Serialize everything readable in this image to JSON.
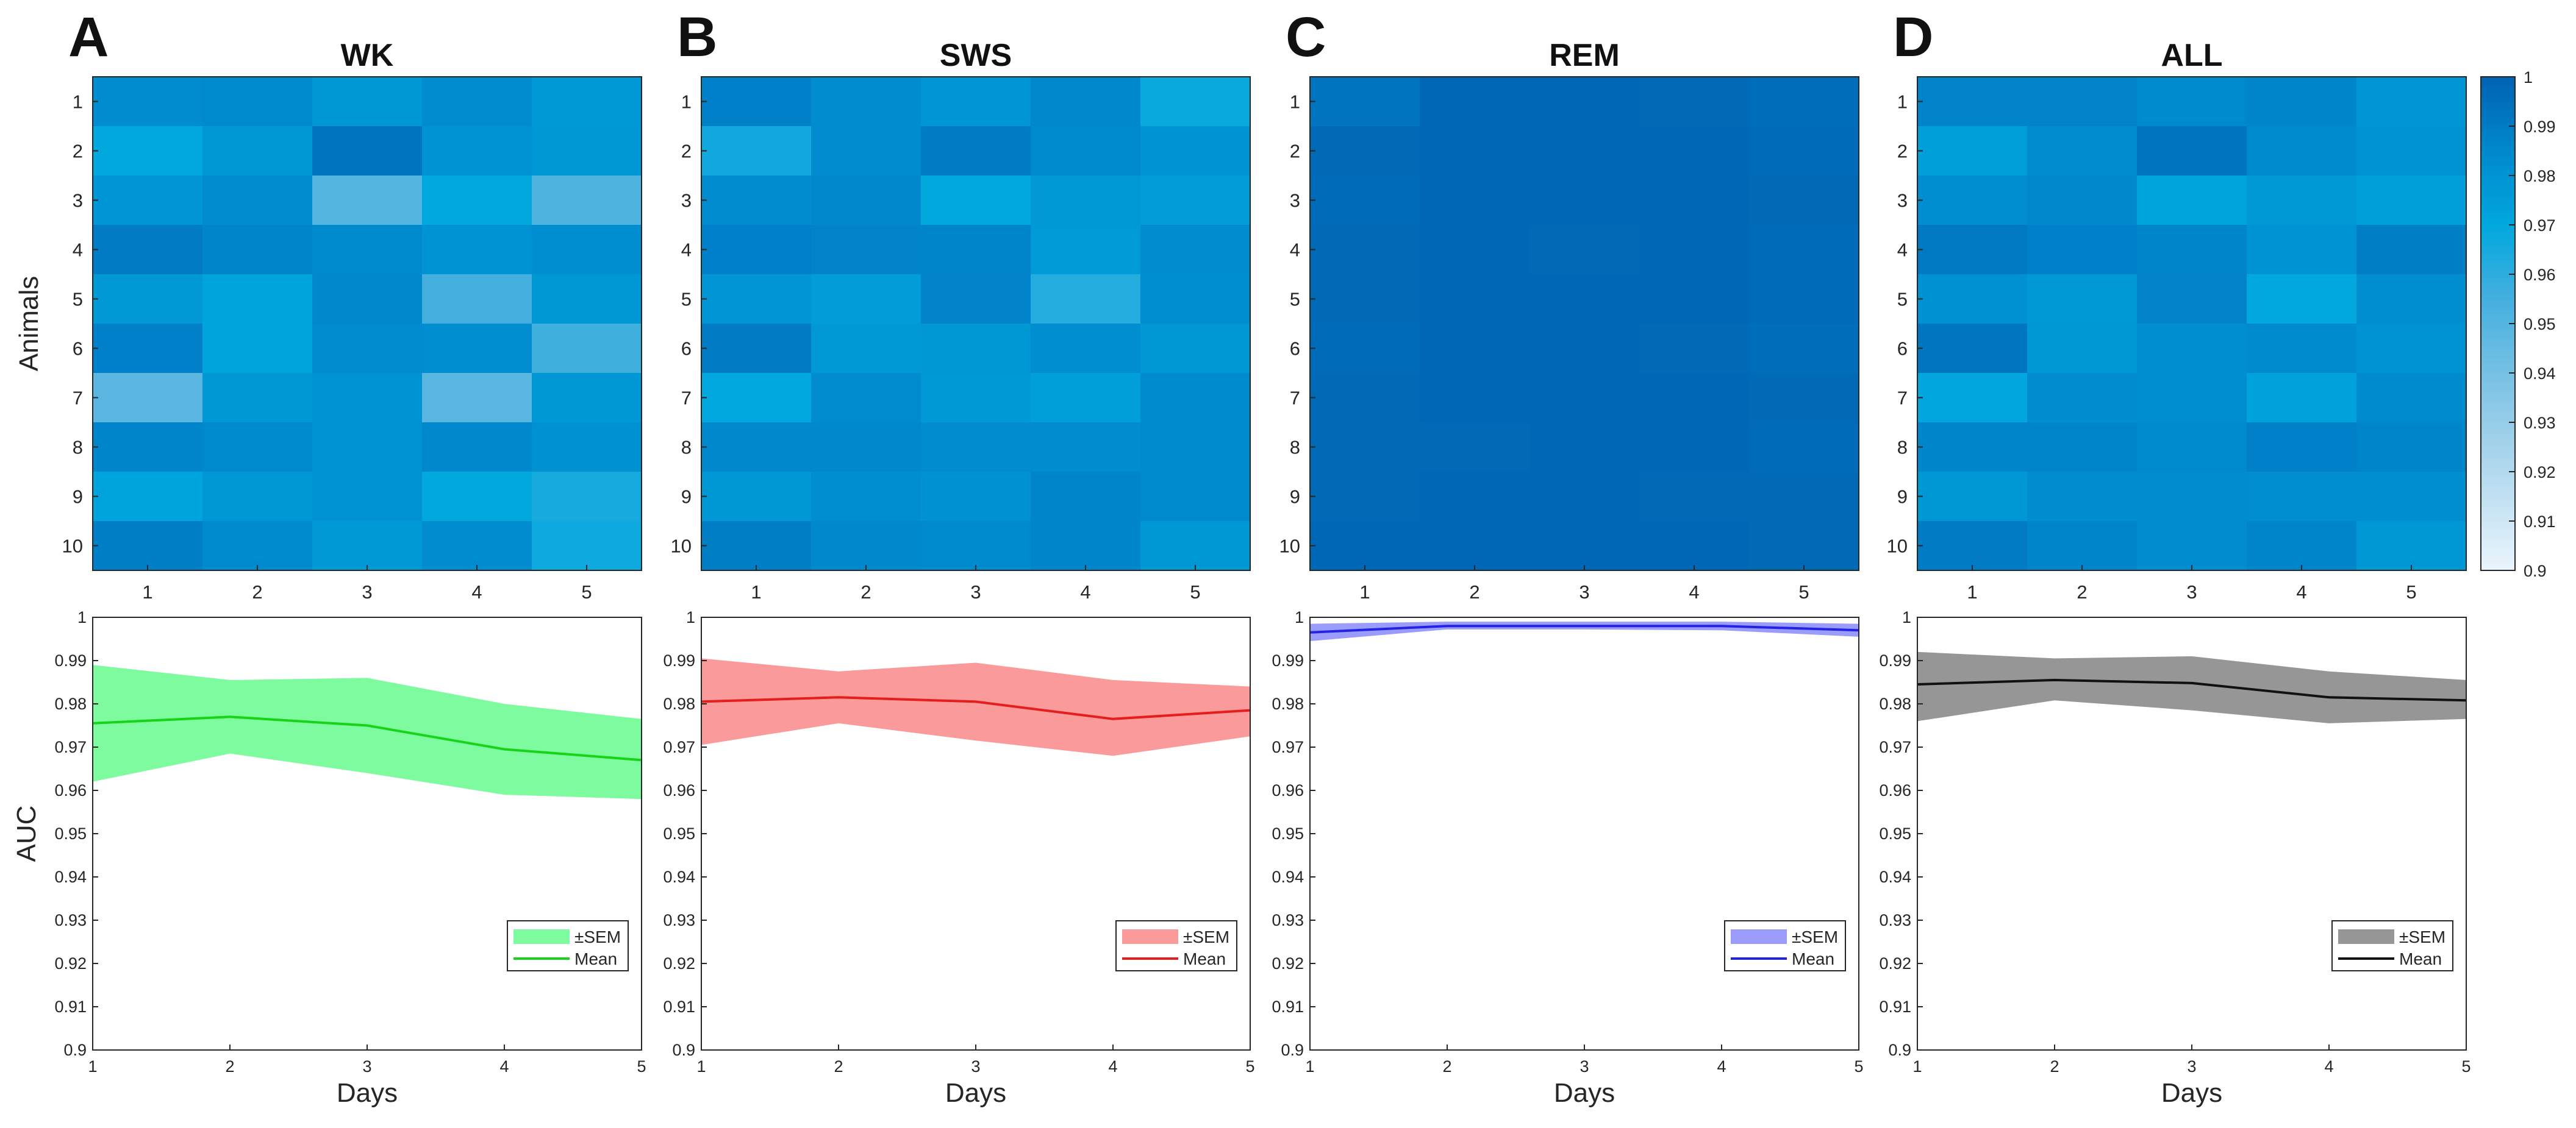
{
  "figure": {
    "panels": [
      {
        "letter": "A",
        "title": "WK"
      },
      {
        "letter": "B",
        "title": "SWS"
      },
      {
        "letter": "C",
        "title": "REM"
      },
      {
        "letter": "D",
        "title": "ALL"
      }
    ],
    "heatmap_ylabel": "Animals",
    "line_ylabel": "AUC",
    "line_xlabel": "Days",
    "colorbar": {
      "min": 0.9,
      "max": 1,
      "ticks": [
        "0.9",
        "0.91",
        "0.92",
        "0.93",
        "0.94",
        "0.95",
        "0.96",
        "0.97",
        "0.98",
        "0.99",
        "1"
      ]
    },
    "legend": {
      "band_label": "±SEM",
      "line_label": "Mean"
    }
  },
  "chart_data": [
    {
      "type": "heatmap",
      "panel": "A",
      "title": "WK",
      "xlabel": "",
      "ylabel": "Animals",
      "x_categories": [
        "1",
        "2",
        "3",
        "4",
        "5"
      ],
      "y_categories": [
        "1",
        "2",
        "3",
        "4",
        "5",
        "6",
        "7",
        "8",
        "9",
        "10"
      ],
      "values": [
        [
          0.983,
          0.984,
          0.978,
          0.983,
          0.977
        ],
        [
          0.97,
          0.978,
          0.993,
          0.98,
          0.978
        ],
        [
          0.979,
          0.983,
          0.95,
          0.97,
          0.952
        ],
        [
          0.99,
          0.986,
          0.984,
          0.98,
          0.982
        ],
        [
          0.977,
          0.972,
          0.985,
          0.955,
          0.978
        ],
        [
          0.988,
          0.972,
          0.983,
          0.982,
          0.956
        ],
        [
          0.948,
          0.978,
          0.98,
          0.949,
          0.978
        ],
        [
          0.986,
          0.984,
          0.98,
          0.985,
          0.981
        ],
        [
          0.972,
          0.978,
          0.98,
          0.97,
          0.965
        ],
        [
          0.989,
          0.984,
          0.977,
          0.983,
          0.967
        ]
      ],
      "clim": [
        0.9,
        1
      ]
    },
    {
      "type": "heatmap",
      "panel": "B",
      "title": "SWS",
      "xlabel": "",
      "ylabel": "",
      "x_categories": [
        "1",
        "2",
        "3",
        "4",
        "5"
      ],
      "y_categories": [
        "1",
        "2",
        "3",
        "4",
        "5",
        "6",
        "7",
        "8",
        "9",
        "10"
      ],
      "values": [
        [
          0.988,
          0.983,
          0.979,
          0.985,
          0.968
        ],
        [
          0.966,
          0.983,
          0.99,
          0.984,
          0.98
        ],
        [
          0.983,
          0.985,
          0.97,
          0.977,
          0.975
        ],
        [
          0.988,
          0.987,
          0.986,
          0.976,
          0.983
        ],
        [
          0.979,
          0.975,
          0.987,
          0.962,
          0.982
        ],
        [
          0.99,
          0.977,
          0.978,
          0.982,
          0.978
        ],
        [
          0.97,
          0.983,
          0.977,
          0.974,
          0.984
        ],
        [
          0.985,
          0.985,
          0.983,
          0.983,
          0.984
        ],
        [
          0.978,
          0.982,
          0.981,
          0.986,
          0.984
        ],
        [
          0.989,
          0.985,
          0.984,
          0.986,
          0.978
        ]
      ],
      "clim": [
        0.9,
        1
      ]
    },
    {
      "type": "heatmap",
      "panel": "C",
      "title": "REM",
      "xlabel": "",
      "ylabel": "",
      "x_categories": [
        "1",
        "2",
        "3",
        "4",
        "5"
      ],
      "y_categories": [
        "1",
        "2",
        "3",
        "4",
        "5",
        "6",
        "7",
        "8",
        "9",
        "10"
      ],
      "values": [
        [
          0.993,
          0.998,
          0.998,
          0.997,
          0.995
        ],
        [
          0.997,
          0.998,
          0.998,
          0.998,
          0.996
        ],
        [
          0.996,
          0.998,
          0.998,
          0.998,
          0.997
        ],
        [
          0.997,
          0.998,
          0.997,
          0.998,
          0.996
        ],
        [
          0.997,
          0.998,
          0.998,
          0.998,
          0.996
        ],
        [
          0.996,
          0.998,
          0.998,
          0.997,
          0.995
        ],
        [
          0.997,
          0.998,
          0.998,
          0.998,
          0.997
        ],
        [
          0.997,
          0.997,
          0.998,
          0.998,
          0.996
        ],
        [
          0.997,
          0.998,
          0.998,
          0.997,
          0.997
        ],
        [
          0.998,
          0.998,
          0.998,
          0.998,
          0.997
        ]
      ],
      "clim": [
        0.9,
        1
      ]
    },
    {
      "type": "heatmap",
      "panel": "D",
      "title": "ALL",
      "xlabel": "",
      "ylabel": "",
      "x_categories": [
        "1",
        "2",
        "3",
        "4",
        "5"
      ],
      "y_categories": [
        "1",
        "2",
        "3",
        "4",
        "5",
        "6",
        "7",
        "8",
        "9",
        "10"
      ],
      "values": [
        [
          0.987,
          0.987,
          0.984,
          0.986,
          0.979
        ],
        [
          0.974,
          0.983,
          0.993,
          0.984,
          0.98
        ],
        [
          0.982,
          0.985,
          0.972,
          0.977,
          0.974
        ],
        [
          0.991,
          0.988,
          0.986,
          0.98,
          0.989
        ],
        [
          0.981,
          0.977,
          0.987,
          0.97,
          0.982
        ],
        [
          0.992,
          0.978,
          0.982,
          0.984,
          0.98
        ],
        [
          0.971,
          0.983,
          0.982,
          0.973,
          0.984
        ],
        [
          0.986,
          0.986,
          0.984,
          0.988,
          0.986
        ],
        [
          0.978,
          0.983,
          0.983,
          0.982,
          0.982
        ],
        [
          0.99,
          0.986,
          0.983,
          0.986,
          0.978
        ]
      ],
      "clim": [
        0.9,
        1
      ]
    },
    {
      "type": "line",
      "panel": "A",
      "xlabel": "Days",
      "ylabel": "AUC",
      "x": [
        1,
        2,
        3,
        4,
        5
      ],
      "series": [
        {
          "name": "Mean",
          "values": [
            0.9755,
            0.977,
            0.975,
            0.9695,
            0.967
          ],
          "lower": [
            0.962,
            0.9685,
            0.964,
            0.959,
            0.958
          ],
          "upper": [
            0.989,
            0.9855,
            0.986,
            0.98,
            0.9765
          ]
        }
      ],
      "xlim": [
        1,
        5
      ],
      "ylim": [
        0.9,
        1
      ],
      "yticks": [
        "0.9",
        "0.91",
        "0.92",
        "0.93",
        "0.94",
        "0.95",
        "0.96",
        "0.97",
        "0.98",
        "0.99",
        "1"
      ],
      "xticks": [
        "1",
        "2",
        "3",
        "4",
        "5"
      ],
      "legend": [
        "±SEM",
        "Mean"
      ],
      "color": "#18d418",
      "band_color": "#7ffb9f"
    },
    {
      "type": "line",
      "panel": "B",
      "xlabel": "Days",
      "ylabel": "",
      "x": [
        1,
        2,
        3,
        4,
        5
      ],
      "series": [
        {
          "name": "Mean",
          "values": [
            0.9805,
            0.9815,
            0.9805,
            0.9765,
            0.9785
          ],
          "lower": [
            0.9705,
            0.9755,
            0.9715,
            0.968,
            0.9725
          ],
          "upper": [
            0.9905,
            0.9875,
            0.9895,
            0.9855,
            0.984
          ]
        }
      ],
      "xlim": [
        1,
        5
      ],
      "ylim": [
        0.9,
        1
      ],
      "yticks": [
        "0.9",
        "0.91",
        "0.92",
        "0.93",
        "0.94",
        "0.95",
        "0.96",
        "0.97",
        "0.98",
        "0.99",
        "1"
      ],
      "xticks": [
        "1",
        "2",
        "3",
        "4",
        "5"
      ],
      "legend": [
        "±SEM",
        "Mean"
      ],
      "color": "#e51d1d",
      "band_color": "#fa9a9a"
    },
    {
      "type": "line",
      "panel": "C",
      "xlabel": "Days",
      "ylabel": "",
      "x": [
        1,
        2,
        3,
        4,
        5
      ],
      "series": [
        {
          "name": "Mean",
          "values": [
            0.9965,
            0.998,
            0.998,
            0.998,
            0.997
          ],
          "lower": [
            0.9945,
            0.9972,
            0.9972,
            0.997,
            0.9955
          ],
          "upper": [
            0.9985,
            0.999,
            0.999,
            0.999,
            0.9985
          ]
        }
      ],
      "xlim": [
        1,
        5
      ],
      "ylim": [
        0.9,
        1
      ],
      "yticks": [
        "0.9",
        "0.91",
        "0.92",
        "0.93",
        "0.94",
        "0.95",
        "0.96",
        "0.97",
        "0.98",
        "0.99",
        "1"
      ],
      "xticks": [
        "1",
        "2",
        "3",
        "4",
        "5"
      ],
      "legend": [
        "±SEM",
        "Mean"
      ],
      "color": "#2323e6",
      "band_color": "#9b9bfb"
    },
    {
      "type": "line",
      "panel": "D",
      "xlabel": "Days",
      "ylabel": "",
      "x": [
        1,
        2,
        3,
        4,
        5
      ],
      "series": [
        {
          "name": "Mean",
          "values": [
            0.9845,
            0.9855,
            0.9848,
            0.9815,
            0.9808
          ],
          "lower": [
            0.976,
            0.9808,
            0.9785,
            0.9755,
            0.9765
          ],
          "upper": [
            0.992,
            0.9905,
            0.991,
            0.9875,
            0.9855
          ]
        }
      ],
      "xlim": [
        1,
        5
      ],
      "ylim": [
        0.9,
        1
      ],
      "yticks": [
        "0.9",
        "0.91",
        "0.92",
        "0.93",
        "0.94",
        "0.95",
        "0.96",
        "0.97",
        "0.98",
        "0.99",
        "1"
      ],
      "xticks": [
        "1",
        "2",
        "3",
        "4",
        "5"
      ],
      "legend": [
        "±SEM",
        "Mean"
      ],
      "color": "#111111",
      "band_color": "#969696"
    }
  ]
}
